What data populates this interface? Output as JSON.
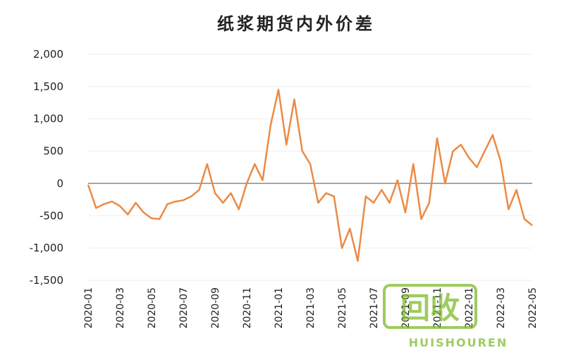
{
  "chart_data": {
    "type": "line",
    "title": "纸浆期货内外价差",
    "categories": [
      "2020-01",
      null,
      null,
      null,
      "2020-03",
      null,
      null,
      null,
      "2020-05",
      null,
      null,
      null,
      "2020-07",
      null,
      null,
      null,
      "2020-09",
      null,
      null,
      null,
      "2020-11",
      null,
      null,
      null,
      "2021-01",
      null,
      null,
      null,
      "2021-03",
      null,
      null,
      null,
      "2021-05",
      null,
      null,
      null,
      "2021-07",
      null,
      null,
      null,
      "2021-09",
      null,
      null,
      null,
      "2021-11",
      null,
      null,
      null,
      "2022-01",
      null,
      null,
      null,
      "2022-03",
      null,
      null,
      null,
      "2022-05"
    ],
    "values": [
      -20,
      -380,
      -320,
      -280,
      -350,
      -480,
      -300,
      -450,
      -540,
      -550,
      -320,
      -280,
      -260,
      -200,
      -100,
      300,
      -150,
      -300,
      -150,
      -400,
      0,
      300,
      50,
      900,
      1450,
      600,
      1300,
      500,
      300,
      -300,
      -150,
      -200,
      -1000,
      -700,
      -1200,
      -200,
      -300,
      -100,
      -300,
      50,
      -450,
      300,
      -550,
      -300,
      700,
      0,
      500,
      600,
      400,
      250,
      500,
      750,
      350,
      -400,
      -100,
      -550,
      -650
    ],
    "color": "#ec8a45",
    "ylim": [
      -1500,
      2000
    ],
    "yticks": [
      {
        "value": -1500,
        "label": "-1,500"
      },
      {
        "value": -1000,
        "label": "-1,000"
      },
      -500,
      0,
      500,
      {
        "value": 1000,
        "label": "1,000"
      },
      {
        "value": 1500,
        "label": "1,500"
      },
      {
        "value": 2000,
        "label": "2,000"
      }
    ],
    "grid": true,
    "watermark": {
      "mark": "回收",
      "text": "HUISHOUREN"
    }
  }
}
